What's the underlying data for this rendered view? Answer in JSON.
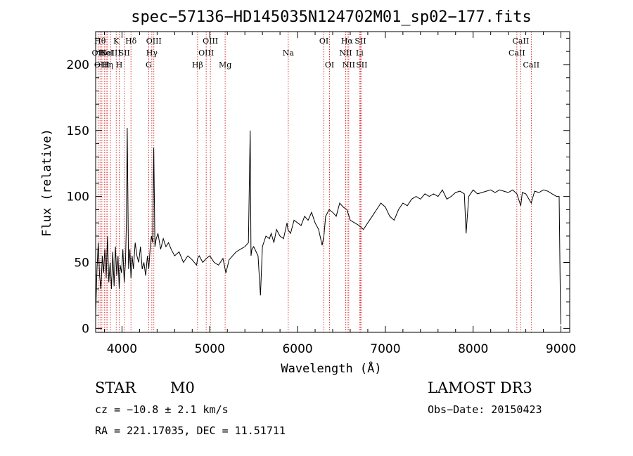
{
  "chart_data": {
    "type": "line",
    "title": "spec−57136−HD145035N124702M01_sp02−177.fits",
    "xlabel": "Wavelength (Å)",
    "ylabel": "Flux (relative)",
    "xlim": [
      3700,
      9100
    ],
    "ylim": [
      -3,
      225
    ],
    "xticks": [
      4000,
      5000,
      6000,
      7000,
      8000,
      9000
    ],
    "yticks": [
      0,
      50,
      100,
      150,
      200
    ],
    "grid": false,
    "line_color": "#000000",
    "marker_color": "#cc0000",
    "series": [
      {
        "x": [
          3700,
          3715,
          3730,
          3745,
          3760,
          3775,
          3790,
          3805,
          3820,
          3835,
          3850,
          3865,
          3880,
          3895,
          3910,
          3925,
          3940,
          3955,
          3968,
          3980,
          3995,
          4010,
          4025,
          4040,
          4050,
          4060,
          4075,
          4090,
          4102,
          4115,
          4130,
          4150,
          4170,
          4190,
          4210,
          4230,
          4250,
          4270,
          4290,
          4305,
          4320,
          4335,
          4350,
          4362,
          4375,
          4390,
          4410,
          4440,
          4470,
          4500,
          4530,
          4560,
          4600,
          4650,
          4700,
          4750,
          4800,
          4850,
          4861,
          4880,
          4920,
          4960,
          5000,
          5050,
          5100,
          5150,
          5184,
          5220,
          5260,
          5300,
          5350,
          5400,
          5440,
          5460,
          5470,
          5480,
          5500,
          5550,
          5577,
          5600,
          5640,
          5680,
          5700,
          5730,
          5760,
          5800,
          5840,
          5880,
          5890,
          5920,
          5960,
          6000,
          6040,
          6080,
          6120,
          6160,
          6200,
          6240,
          6280,
          6300,
          6320,
          6360,
          6400,
          6440,
          6480,
          6520,
          6563,
          6600,
          6650,
          6700,
          6750,
          6800,
          6850,
          6900,
          6950,
          7000,
          7050,
          7100,
          7150,
          7200,
          7250,
          7300,
          7350,
          7400,
          7450,
          7500,
          7550,
          7600,
          7650,
          7700,
          7750,
          7800,
          7850,
          7900,
          7920,
          7950,
          8000,
          8050,
          8100,
          8150,
          8200,
          8250,
          8300,
          8350,
          8400,
          8450,
          8498,
          8542,
          8560,
          8600,
          8662,
          8700,
          8750,
          8800,
          8850,
          8900,
          8950,
          8980,
          8990,
          8995,
          9000
        ],
        "y": [
          10,
          45,
          65,
          40,
          30,
          55,
          42,
          60,
          38,
          70,
          35,
          50,
          30,
          58,
          32,
          62,
          40,
          55,
          30,
          48,
          42,
          60,
          35,
          50,
          80,
          152,
          45,
          60,
          38,
          55,
          45,
          65,
          55,
          50,
          62,
          45,
          50,
          40,
          55,
          45,
          60,
          70,
          65,
          137,
          62,
          68,
          72,
          60,
          68,
          62,
          65,
          60,
          55,
          58,
          50,
          55,
          52,
          48,
          53,
          55,
          50,
          53,
          55,
          50,
          48,
          53,
          42,
          52,
          55,
          58,
          60,
          62,
          65,
          150,
          55,
          60,
          62,
          55,
          25,
          62,
          70,
          68,
          72,
          65,
          75,
          70,
          68,
          80,
          75,
          72,
          82,
          80,
          78,
          85,
          82,
          88,
          80,
          75,
          63,
          70,
          85,
          90,
          88,
          85,
          95,
          92,
          90,
          82,
          80,
          78,
          75,
          80,
          85,
          90,
          95,
          92,
          85,
          82,
          90,
          95,
          93,
          98,
          100,
          98,
          102,
          100,
          102,
          100,
          105,
          98,
          100,
          103,
          104,
          102,
          72,
          100,
          105,
          102,
          103,
          104,
          105,
          103,
          105,
          104,
          103,
          105,
          102,
          93,
          103,
          102,
          95,
          104,
          103,
          105,
          104,
          102,
          100,
          100,
          40,
          15,
          3
        ]
      }
    ],
    "line_markers": [
      {
        "wl": 3727,
        "label": "OII",
        "row": 2
      },
      {
        "wl": 3750,
        "label": "Hθ",
        "row": 1
      },
      {
        "wl": 3771,
        "label": "OIII",
        "row": 3
      },
      {
        "wl": 3798,
        "label": "",
        "row": 0
      },
      {
        "wl": 3820,
        "label": "HeI",
        "row": 2
      },
      {
        "wl": 3835,
        "label": "Hη",
        "row": 3
      },
      {
        "wl": 3869,
        "label": "NeIII",
        "row": 2
      },
      {
        "wl": 3934,
        "label": "K",
        "row": 1
      },
      {
        "wl": 3969,
        "label": "H",
        "row": 3
      },
      {
        "wl": 4026,
        "label": "SII",
        "row": 2
      },
      {
        "wl": 4102,
        "label": "Hδ",
        "row": 1
      },
      {
        "wl": 4304,
        "label": "G",
        "row": 3
      },
      {
        "wl": 4340,
        "label": "Hγ",
        "row": 2
      },
      {
        "wl": 4363,
        "label": "OIII",
        "row": 1
      },
      {
        "wl": 4861,
        "label": "Hβ",
        "row": 3
      },
      {
        "wl": 4959,
        "label": "OIII",
        "row": 2
      },
      {
        "wl": 5007,
        "label": "OIII",
        "row": 1
      },
      {
        "wl": 5175,
        "label": "Mg",
        "row": 3
      },
      {
        "wl": 5894,
        "label": "Na",
        "row": 2
      },
      {
        "wl": 6300,
        "label": "OI",
        "row": 1
      },
      {
        "wl": 6364,
        "label": "OI",
        "row": 3
      },
      {
        "wl": 6548,
        "label": "NII",
        "row": 2
      },
      {
        "wl": 6563,
        "label": "Hα",
        "row": 1
      },
      {
        "wl": 6583,
        "label": "NII",
        "row": 3
      },
      {
        "wl": 6707,
        "label": "Li",
        "row": 2
      },
      {
        "wl": 6716,
        "label": "SII",
        "row": 1
      },
      {
        "wl": 6731,
        "label": "SII",
        "row": 3
      },
      {
        "wl": 8498,
        "label": "CaII",
        "row": 2
      },
      {
        "wl": 8542,
        "label": "CaII",
        "row": 1
      },
      {
        "wl": 8662,
        "label": "CaII",
        "row": 3
      }
    ]
  },
  "info": {
    "class_label": "STAR",
    "subclass_label": "M0",
    "survey": "LAMOST DR3",
    "cz": "cz = −10.8 ± 2.1 km/s",
    "obs_date": "Obs−Date: 20150423",
    "coords": "RA = 221.17035, DEC =  11.51711"
  }
}
